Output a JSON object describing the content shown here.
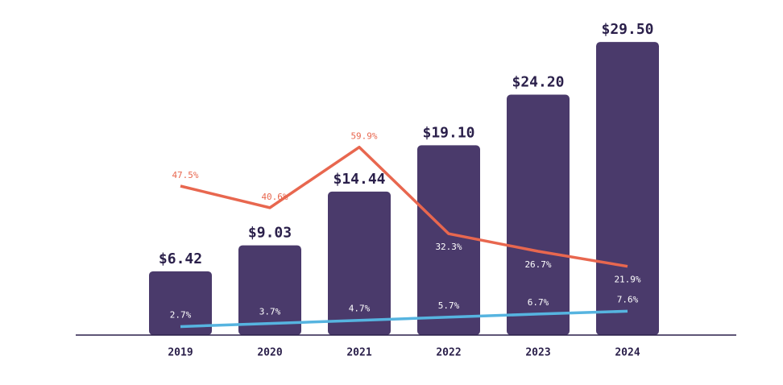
{
  "chart_data": {
    "type": "bar",
    "categories": [
      "2019",
      "2020",
      "2021",
      "2022",
      "2023",
      "2024"
    ],
    "values": [
      6.42,
      9.03,
      14.44,
      19.1,
      24.2,
      29.5
    ],
    "value_labels": [
      "$6.42",
      "$9.03",
      "$14.44",
      "$19.10",
      "$24.20",
      "$29.50"
    ],
    "color": "#4a3a6b",
    "ylim": [
      0,
      30
    ],
    "y2lim": [
      0,
      95
    ],
    "series": [
      {
        "type": "line",
        "axis": "y2",
        "color": "#e8674f",
        "values": [
          47.5,
          40.6,
          59.9,
          32.3,
          26.7,
          21.9
        ],
        "value_labels": [
          "47.5%",
          "40.6%",
          "59.9%",
          "32.3%",
          "26.7%",
          "21.9%"
        ]
      },
      {
        "type": "line",
        "axis": "y2",
        "color": "#56b4e0",
        "values": [
          2.7,
          3.7,
          4.7,
          5.7,
          6.7,
          7.6
        ],
        "value_labels": [
          "2.7%",
          "3.7%",
          "4.7%",
          "5.7%",
          "6.7%",
          "7.6%"
        ]
      }
    ]
  }
}
